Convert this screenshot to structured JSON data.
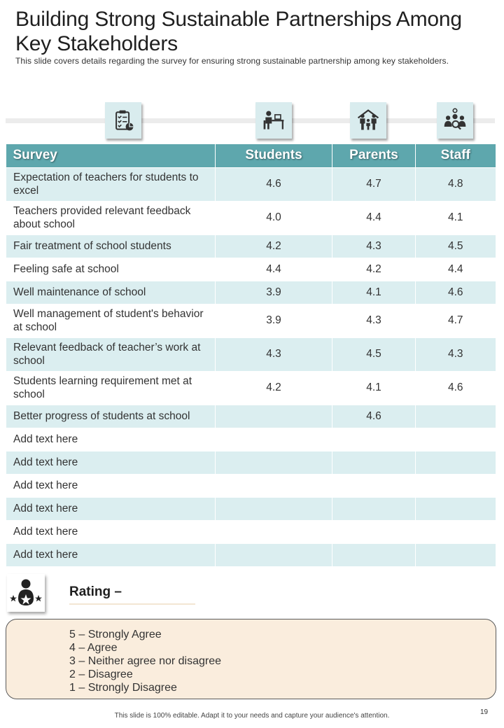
{
  "header": {
    "title": "Building Strong Sustainable Partnerships Among Key Stakeholders",
    "subtitle": "This slide covers details regarding the survey for ensuring strong sustainable partnership among key stakeholders."
  },
  "icons": {
    "survey": "clipboard-checklist-icon",
    "students": "student-at-desk-icon",
    "parents": "family-house-icon",
    "staff": "team-search-icon",
    "rating": "person-stars-icon"
  },
  "colors": {
    "header_teal": "#5ea7ad",
    "row_tint": "#dbeef0",
    "icon_bg": "#d9ecee",
    "scale_bg": "#faeddd"
  },
  "table": {
    "columns": [
      "Survey",
      "Students",
      "Parents",
      "Staff"
    ],
    "rows": [
      {
        "label": "Expectation of teachers for students to excel",
        "students": "4.6",
        "parents": "4.7",
        "staff": "4.8"
      },
      {
        "label": "Teachers provided relevant feedback about school",
        "students": "4.0",
        "parents": "4.4",
        "staff": "4.1"
      },
      {
        "label": "Fair treatment  of school students",
        "students": "4.2",
        "parents": "4.3",
        "staff": "4.5"
      },
      {
        "label": "Feeling safe at school",
        "students": "4.4",
        "parents": "4.2",
        "staff": "4.4"
      },
      {
        "label": "Well maintenance  of school",
        "students": "3.9",
        "parents": "4.1",
        "staff": "4.6"
      },
      {
        "label": "Well management  of student's behavior at school",
        "students": "3.9",
        "parents": "4.3",
        "staff": "4.7"
      },
      {
        "label": "Relevant feedback of teacher’s work at school",
        "students": "4.3",
        "parents": "4.5",
        "staff": "4.3"
      },
      {
        "label": "Students learning requirement met at school",
        "students": "4.2",
        "parents": "4.1",
        "staff": "4.6"
      },
      {
        "label": "Better progress of students  at school",
        "students": "",
        "parents": "4.6",
        "staff": ""
      },
      {
        "label": "Add text here",
        "students": "",
        "parents": "",
        "staff": ""
      },
      {
        "label": "Add text here",
        "students": "",
        "parents": "",
        "staff": ""
      },
      {
        "label": "Add text here",
        "students": "",
        "parents": "",
        "staff": ""
      },
      {
        "label": "Add text here",
        "students": "",
        "parents": "",
        "staff": ""
      },
      {
        "label": "Add text here",
        "students": "",
        "parents": "",
        "staff": ""
      },
      {
        "label": "Add text here",
        "students": "",
        "parents": "",
        "staff": ""
      }
    ]
  },
  "rating": {
    "title": "Rating –",
    "scale": [
      "5 – Strongly Agree",
      "4 – Agree",
      "3 – Neither agree nor disagree",
      "2 – Disagree",
      "1 – Strongly Disagree"
    ]
  },
  "footer": {
    "note": "This slide is 100% editable. Adapt it to your needs and capture your audience's attention.",
    "page_number": "19"
  }
}
